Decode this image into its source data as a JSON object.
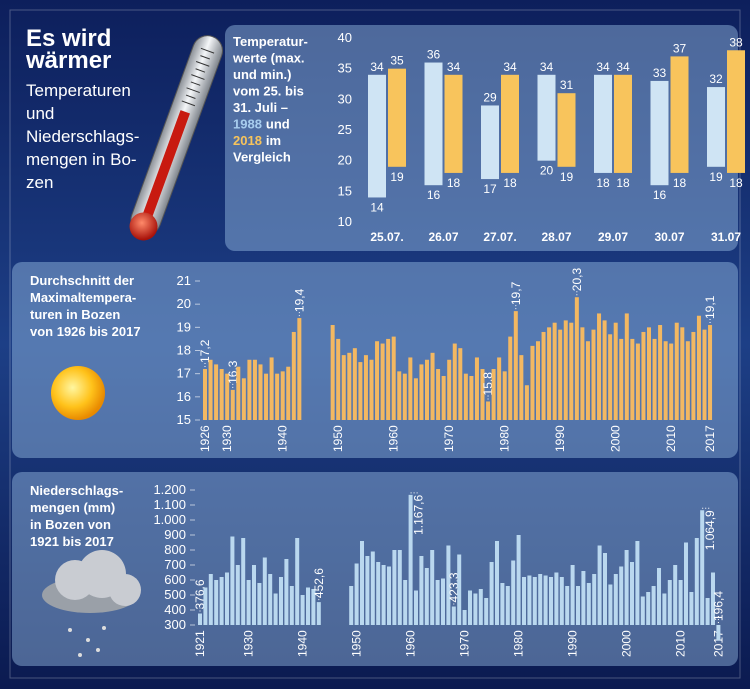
{
  "header": {
    "title_lines": [
      "Es wird",
      "wärmer"
    ],
    "subtitle_lines": [
      "Temperaturen",
      "und",
      "Niederschlags-",
      "mengen in Bo-",
      "zen"
    ]
  },
  "chart_data": [
    {
      "type": "range_bar",
      "title_lines": [
        "Temperatur-",
        "werte (max.",
        "und min.)",
        "vom 25. bis",
        "31. Juli –"
      ],
      "title_und": "und",
      "title_im": "im",
      "title_end": "Vergleich",
      "categories": [
        "25.07.",
        "26.07",
        "27.07.",
        "28.07",
        "29.07",
        "30.07",
        "31.07"
      ],
      "series": [
        {
          "name": "1988",
          "color": "#cfe4f4",
          "high": [
            34,
            36,
            29,
            34,
            34,
            33,
            32
          ],
          "low": [
            14,
            16,
            17,
            20,
            18,
            16,
            19
          ]
        },
        {
          "name": "2018",
          "color": "#f8c45c",
          "high": [
            35,
            34,
            34,
            31,
            34,
            37,
            38
          ],
          "low": [
            19,
            18,
            18,
            19,
            18,
            18,
            18
          ]
        }
      ],
      "ylim": [
        10,
        40
      ],
      "yticks": [
        10,
        15,
        20,
        25,
        30,
        35,
        40
      ]
    },
    {
      "type": "bar",
      "title_lines": [
        "Durchschnitt der",
        "Maximaltempera-",
        "turen in Bozen",
        "von 1926 bis 2017"
      ],
      "color": "#f3b862",
      "x": [
        1926,
        1927,
        1928,
        1929,
        1930,
        1931,
        1932,
        1933,
        1934,
        1935,
        1936,
        1937,
        1938,
        1939,
        1940,
        1941,
        1942,
        1943,
        1944,
        1945,
        1946,
        1947,
        1948,
        1949,
        1950,
        1951,
        1952,
        1953,
        1954,
        1955,
        1956,
        1957,
        1958,
        1959,
        1960,
        1961,
        1962,
        1963,
        1964,
        1965,
        1966,
        1967,
        1968,
        1969,
        1970,
        1971,
        1972,
        1973,
        1974,
        1975,
        1976,
        1977,
        1978,
        1979,
        1980,
        1981,
        1982,
        1983,
        1984,
        1985,
        1986,
        1987,
        1988,
        1989,
        1990,
        1991,
        1992,
        1993,
        1994,
        1995,
        1996,
        1997,
        1998,
        1999,
        2000,
        2001,
        2002,
        2003,
        2004,
        2005,
        2006,
        2007,
        2008,
        2009,
        2010,
        2011,
        2012,
        2013,
        2014,
        2015,
        2016,
        2017
      ],
      "values": [
        17.2,
        17.6,
        17.4,
        17.2,
        17.0,
        16.3,
        17.3,
        16.8,
        17.6,
        17.6,
        17.4,
        17.0,
        17.7,
        17.0,
        17.1,
        17.3,
        18.8,
        19.4,
        null,
        null,
        null,
        null,
        null,
        19.1,
        18.5,
        17.8,
        17.9,
        18.1,
        17.5,
        17.8,
        17.6,
        18.4,
        18.3,
        18.5,
        18.6,
        17.1,
        17.0,
        17.7,
        16.8,
        17.4,
        17.6,
        17.9,
        17.2,
        16.9,
        17.6,
        18.3,
        18.1,
        17.0,
        16.9,
        17.7,
        17.2,
        15.8,
        17.2,
        17.7,
        17.1,
        18.6,
        19.7,
        17.8,
        16.5,
        18.2,
        18.4,
        18.8,
        19.0,
        19.2,
        18.9,
        19.3,
        19.2,
        20.3,
        19.0,
        18.4,
        18.9,
        19.6,
        19.3,
        18.7,
        19.2,
        18.5,
        19.6,
        18.5,
        18.3,
        18.8,
        19.0,
        18.5,
        19.1,
        18.4,
        18.3,
        19.2,
        19.0,
        18.4,
        18.8,
        19.5,
        18.9,
        19.1
      ],
      "value_labels": [
        "17,2",
        null,
        null,
        null,
        null,
        "16,3",
        null,
        null,
        null,
        null,
        null,
        null,
        null,
        null,
        null,
        null,
        null,
        "19,4",
        null,
        null,
        null,
        null,
        null,
        null,
        null,
        null,
        null,
        null,
        null,
        null,
        null,
        null,
        null,
        null,
        null,
        null,
        null,
        null,
        null,
        null,
        null,
        null,
        null,
        null,
        null,
        null,
        null,
        null,
        null,
        null,
        null,
        "15,8",
        null,
        null,
        null,
        null,
        "19,7",
        null,
        null,
        null,
        null,
        null,
        null,
        null,
        null,
        null,
        null,
        "20,3",
        null,
        null,
        null,
        null,
        null,
        null,
        null,
        null,
        null,
        null,
        null,
        null,
        null,
        null,
        null,
        null,
        null,
        null,
        null,
        null,
        null,
        null,
        null,
        "19,1"
      ],
      "xticks": [
        1926,
        1930,
        1940,
        1950,
        1960,
        1970,
        1980,
        1990,
        2000,
        2010,
        2017
      ],
      "ylim": [
        15,
        21
      ],
      "yticks": [
        15,
        16,
        17,
        18,
        19,
        20,
        21
      ]
    },
    {
      "type": "bar",
      "title_lines": [
        "Niederschlags-",
        "mengen (mm)",
        "in Bozen von",
        "1921 bis 2017"
      ],
      "color": "#bad8ef",
      "x": [
        1921,
        1922,
        1923,
        1924,
        1925,
        1926,
        1927,
        1928,
        1929,
        1930,
        1931,
        1932,
        1933,
        1934,
        1935,
        1936,
        1937,
        1938,
        1939,
        1940,
        1941,
        1942,
        1943,
        1944,
        1945,
        1946,
        1947,
        1948,
        1949,
        1950,
        1951,
        1952,
        1953,
        1954,
        1955,
        1956,
        1957,
        1958,
        1959,
        1960,
        1961,
        1962,
        1963,
        1964,
        1965,
        1966,
        1967,
        1968,
        1969,
        1970,
        1971,
        1972,
        1973,
        1974,
        1975,
        1976,
        1977,
        1978,
        1979,
        1980,
        1981,
        1982,
        1983,
        1984,
        1985,
        1986,
        1987,
        1988,
        1989,
        1990,
        1991,
        1992,
        1993,
        1994,
        1995,
        1996,
        1997,
        1998,
        1999,
        2000,
        2001,
        2002,
        2003,
        2004,
        2005,
        2006,
        2007,
        2008,
        2009,
        2010,
        2011,
        2012,
        2013,
        2014,
        2015,
        2016,
        2017
      ],
      "values": [
        376.6,
        550,
        640,
        600,
        620,
        650,
        890,
        700,
        880,
        600,
        700,
        580,
        750,
        640,
        510,
        620,
        740,
        560,
        880,
        500,
        550,
        540,
        452.6,
        null,
        null,
        null,
        null,
        null,
        560,
        710,
        860,
        760,
        790,
        720,
        700,
        690,
        800,
        800,
        600,
        1167.6,
        530,
        760,
        680,
        800,
        600,
        610,
        830,
        423.3,
        770,
        400,
        530,
        510,
        540,
        480,
        720,
        860,
        580,
        560,
        730,
        900,
        620,
        630,
        620,
        640,
        630,
        620,
        650,
        620,
        560,
        700,
        560,
        660,
        580,
        640,
        830,
        780,
        570,
        640,
        690,
        800,
        720,
        860,
        490,
        520,
        560,
        680,
        510,
        600,
        700,
        600,
        850,
        520,
        880,
        1064.9,
        480,
        650,
        196.4
      ],
      "value_labels": [
        "376,6",
        null,
        null,
        null,
        null,
        null,
        null,
        null,
        null,
        null,
        null,
        null,
        null,
        null,
        null,
        null,
        null,
        null,
        null,
        null,
        null,
        null,
        "452,6",
        null,
        null,
        null,
        null,
        null,
        null,
        null,
        null,
        null,
        null,
        null,
        null,
        null,
        null,
        null,
        null,
        "1.167,6",
        null,
        null,
        null,
        null,
        null,
        null,
        null,
        "423,3",
        null,
        null,
        null,
        null,
        null,
        null,
        null,
        null,
        null,
        null,
        null,
        null,
        null,
        null,
        null,
        null,
        null,
        null,
        null,
        null,
        null,
        null,
        null,
        null,
        null,
        null,
        null,
        null,
        null,
        null,
        null,
        null,
        null,
        null,
        null,
        null,
        null,
        null,
        null,
        null,
        null,
        null,
        null,
        null,
        null,
        "1.064,9",
        null,
        null,
        "196,4"
      ],
      "xticks": [
        1921,
        1930,
        1940,
        1950,
        1960,
        1970,
        1980,
        1990,
        2000,
        2010,
        2017
      ],
      "ylim": [
        300,
        1200
      ],
      "yticks": [
        300,
        400,
        500,
        600,
        700,
        800,
        900,
        {
          "value": 1000,
          "label": "1.000"
        },
        {
          "value": 1100,
          "label": "1.100"
        },
        {
          "value": 1200,
          "label": "1.200"
        }
      ]
    }
  ]
}
